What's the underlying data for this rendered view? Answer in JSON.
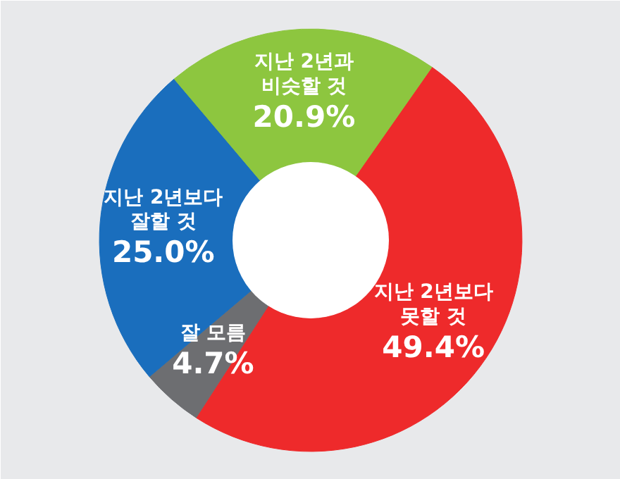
{
  "chart_data": {
    "type": "donut",
    "categories": [
      "지난 2년보다 못할 것",
      "잘 모름",
      "지난 2년보다 잘할 것",
      "지난 2년과 비슷할 것"
    ],
    "values": [
      49.4,
      4.7,
      25.0,
      20.9
    ],
    "colors": [
      "#ee2a2b",
      "#6d6e71",
      "#1a6ebd",
      "#8dc63f"
    ],
    "value_labels": [
      "49.4%",
      "4.7%",
      "25.0%",
      "20.9%"
    ]
  }
}
